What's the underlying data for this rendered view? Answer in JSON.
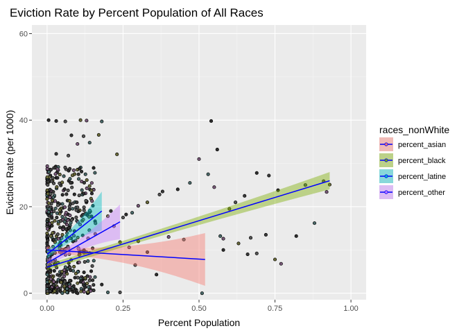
{
  "chart_data": {
    "type": "scatter",
    "title": "Eviction Rate by Percent Population of All Races",
    "xlabel": "Percent Population",
    "ylabel": "Eviction Rate (per 1000)",
    "xlim": [
      -0.05,
      1.05
    ],
    "ylim": [
      -1.5,
      62
    ],
    "x_ticks": [
      0.0,
      0.25,
      0.5,
      0.75,
      1.0
    ],
    "x_tick_labels": [
      "0.00",
      "0.25",
      "0.50",
      "0.75",
      "1.00"
    ],
    "y_ticks": [
      0,
      20,
      40,
      60
    ],
    "y_tick_labels": [
      "0",
      "20",
      "40",
      "60"
    ],
    "grid": true,
    "legend_title": "races_nonWhite",
    "legend_position": "right",
    "series": [
      {
        "name": "percent_asian",
        "color": "#F8766D",
        "x_range": [
          0.0,
          0.52
        ],
        "fit": {
          "y_start": 10.0,
          "y_end": 7.8
        },
        "band_start": [
          9.2,
          10.8
        ],
        "band_end": [
          1.8,
          14.0
        ]
      },
      {
        "name": "percent_black",
        "color": "#7CAE00",
        "x_range": [
          0.0,
          0.93
        ],
        "fit": {
          "y_start": 6.0,
          "y_end": 26.0
        },
        "band_start": [
          5.3,
          6.7
        ],
        "band_end": [
          24.0,
          28.0
        ]
      },
      {
        "name": "percent_latine",
        "color": "#00BFC4",
        "x_range": [
          0.0,
          0.18
        ],
        "fit": {
          "y_start": 9.0,
          "y_end": 19.0
        },
        "band_start": [
          8.0,
          10.0
        ],
        "band_end": [
          14.5,
          23.5
        ]
      },
      {
        "name": "percent_other",
        "color": "#C77CFF",
        "x_range": [
          0.0,
          0.24
        ],
        "fit": {
          "y_start": 7.0,
          "y_end": 16.5
        },
        "band_start": [
          6.2,
          7.8
        ],
        "band_end": [
          12.5,
          20.5
        ]
      }
    ],
    "fit_line_color": "#0000FF",
    "points_high": [
      [
        0.005,
        40
      ],
      [
        0.03,
        39.8
      ],
      [
        0.06,
        39.7
      ],
      [
        0.11,
        40
      ],
      [
        0.13,
        39.9
      ],
      [
        0.18,
        39.7
      ],
      [
        0.54,
        39.8
      ],
      [
        0.08,
        36.5
      ],
      [
        0.12,
        36.3
      ],
      [
        0.17,
        36.6
      ],
      [
        0.1,
        34.5
      ],
      [
        0.14,
        34.8
      ],
      [
        0.56,
        33.2
      ],
      [
        0.03,
        32.2
      ],
      [
        0.07,
        31.8
      ],
      [
        0.23,
        32.1
      ],
      [
        0.5,
        31.0
      ],
      [
        0.53,
        27.5
      ],
      [
        0.69,
        27.8
      ],
      [
        0.73,
        27.2
      ],
      [
        0.91,
        25.9
      ],
      [
        0.93,
        25.1
      ],
      [
        0.92,
        23.4
      ],
      [
        0.85,
        25.0
      ],
      [
        0.76,
        23.8
      ],
      [
        0.65,
        22.5
      ],
      [
        0.62,
        21.0
      ],
      [
        0.6,
        19.5
      ],
      [
        0.55,
        24.5
      ],
      [
        0.47,
        25.5
      ],
      [
        0.43,
        24.0
      ],
      [
        0.38,
        23.5
      ],
      [
        0.37,
        22.8
      ],
      [
        0.33,
        21.0
      ],
      [
        0.3,
        20.2
      ],
      [
        0.28,
        18.6
      ],
      [
        0.26,
        18.2
      ],
      [
        0.21,
        19.0
      ],
      [
        0.25,
        17.5
      ],
      [
        0.2,
        17.8
      ],
      [
        0.22,
        15.5
      ],
      [
        0.88,
        16.2
      ],
      [
        0.82,
        13.2
      ],
      [
        0.72,
        13.5
      ],
      [
        0.67,
        12.8
      ],
      [
        0.63,
        11.5
      ],
      [
        0.58,
        12.6
      ],
      [
        0.57,
        13.2
      ],
      [
        0.58,
        10.0
      ],
      [
        0.66,
        9.0
      ],
      [
        0.69,
        9.2
      ],
      [
        0.75,
        7.8
      ],
      [
        0.77,
        6.8
      ],
      [
        0.51,
        0.0
      ],
      [
        0.36,
        4.3
      ],
      [
        0.33,
        9.5
      ],
      [
        0.29,
        6.5
      ],
      [
        0.24,
        11.8
      ],
      [
        0.27,
        10.6
      ],
      [
        0.2,
        0.2
      ],
      [
        0.18,
        2.0
      ],
      [
        0.15,
        3.0
      ],
      [
        0.24,
        0.2
      ],
      [
        0.3,
        12.0
      ],
      [
        0.4,
        13.0
      ],
      [
        0.45,
        12.4
      ]
    ]
  }
}
